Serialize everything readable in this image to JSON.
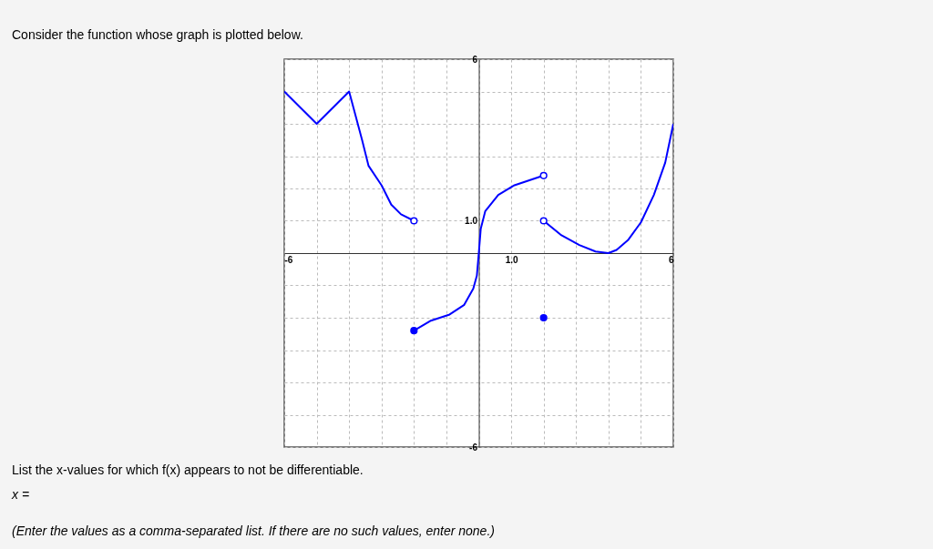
{
  "chart_data": {
    "type": "line",
    "title": "Consider the function whose graph is plotted below.",
    "annotations": [
      "List the x-values for which f(x) appears to not be differentiable.",
      "x =",
      "(Enter the values as a comma-separated list. If there are no such values, enter none.)"
    ],
    "xlim": [
      -6,
      6
    ],
    "ylim": [
      -6,
      6
    ],
    "xticks": [
      -6,
      {
        "value": -5,
        "label": null
      },
      {
        "value": -4,
        "label": null
      },
      {
        "value": -3,
        "label": null
      },
      {
        "value": -2,
        "label": null
      },
      {
        "value": -1,
        "label": null
      },
      {
        "value": 0,
        "label": null
      },
      {
        "value": 1,
        "label": "1.0"
      },
      {
        "value": 2,
        "label": null
      },
      {
        "value": 3,
        "label": null
      },
      {
        "value": 4,
        "label": null
      },
      {
        "value": 5,
        "label": null
      },
      6
    ],
    "yticks": [
      -6,
      {
        "value": -5,
        "label": null
      },
      {
        "value": -4,
        "label": null
      },
      {
        "value": -3,
        "label": null
      },
      {
        "value": -2,
        "label": null
      },
      {
        "value": -1,
        "label": null
      },
      {
        "value": 0,
        "label": null
      },
      {
        "value": 1,
        "label": "1.0"
      },
      {
        "value": 2,
        "label": null
      },
      {
        "value": 3,
        "label": null
      },
      {
        "value": 4,
        "label": null
      },
      {
        "value": 5,
        "label": null
      },
      6
    ],
    "grid": true,
    "series": [
      {
        "color": "#0000ff",
        "x": [
          -6,
          -5,
          -4,
          -3.6,
          -3.4,
          -3.0,
          -2.7,
          -2.4,
          -2
        ],
        "values": [
          5,
          4,
          5,
          3.5,
          2.7,
          2.1,
          1.5,
          1.2,
          1.0
        ]
      },
      {
        "color": "#0000ff",
        "x": [
          -2,
          -1.5,
          -0.9,
          -0.45,
          -0.17,
          -0.06,
          0,
          0.06,
          0.2,
          0.6,
          1.1,
          2
        ],
        "values": [
          -2.4,
          -2.1,
          -1.9,
          -1.6,
          -1.1,
          -0.7,
          0,
          0.75,
          1.3,
          1.8,
          2.1,
          2.4
        ]
      },
      {
        "color": "#0000ff",
        "x": [
          2,
          2.55,
          3.1,
          3.6,
          4,
          4.25,
          4.6,
          5,
          5.4,
          5.75,
          6
        ],
        "values": [
          1.0,
          0.55,
          0.25,
          0.05,
          0.0,
          0.1,
          0.4,
          0.95,
          1.8,
          2.8,
          4.0
        ]
      },
      {
        "type": "scatter",
        "marker": "circle",
        "color": "#ffffff",
        "x": [
          -2,
          2,
          2
        ],
        "values": [
          1.0,
          2.4,
          1.0
        ]
      },
      {
        "type": "scatter",
        "marker": "circle",
        "color": "#0000ff",
        "x": [
          -2,
          2
        ],
        "values": [
          -2.4,
          -2
        ]
      }
    ]
  }
}
